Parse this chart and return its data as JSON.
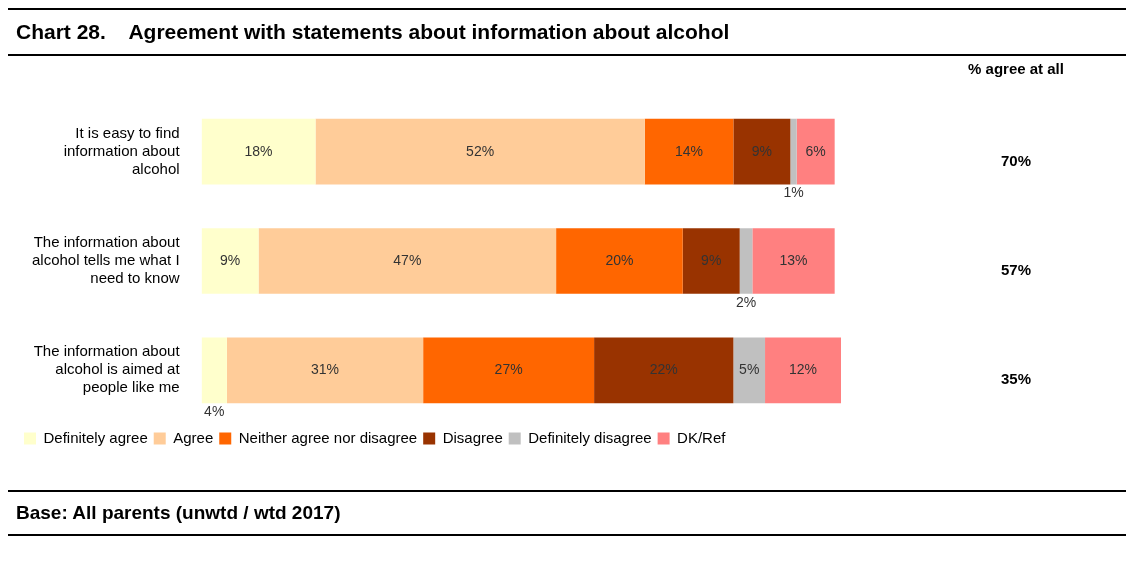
{
  "chart_data": {
    "type": "bar",
    "orientation": "horizontal",
    "stacked": true,
    "title": "Chart 28.    Agreement with statements about information about alcohol",
    "categories": [
      "It is easy to find information about alcohol",
      "The information about alcohol tells me what I need to know",
      "The information about alcohol is aimed at people like me"
    ],
    "series": [
      {
        "name": "Definitely agree",
        "color": "#ffffcc",
        "values": [
          18,
          9,
          4
        ],
        "value_labels": [
          "18%",
          "9%",
          "4%"
        ]
      },
      {
        "name": "Agree",
        "color": "#ffcc99",
        "values": [
          52,
          47,
          31
        ],
        "value_labels": [
          "52%",
          "47%",
          "31%"
        ]
      },
      {
        "name": "Neither agree nor disagree",
        "color": "#ff6600",
        "values": [
          14,
          20,
          27
        ],
        "value_labels": [
          "14%",
          "20%",
          "27%"
        ]
      },
      {
        "name": "Disagree",
        "color": "#993300",
        "values": [
          9,
          9,
          22
        ],
        "value_labels": [
          "9%",
          "9%",
          "22%"
        ]
      },
      {
        "name": "Definitely disagree",
        "color": "#c0c0c0",
        "values": [
          1,
          2,
          5
        ],
        "value_labels": [
          "1%",
          "2%",
          "5%"
        ]
      },
      {
        "name": "DK/Ref",
        "color": "#ff8080",
        "values": [
          6,
          13,
          12
        ],
        "value_labels": [
          "6%",
          "13%",
          "12%"
        ]
      }
    ],
    "legend": "bottom left",
    "annotations": [
      "% agree at all",
      "70%",
      "57%",
      "35%",
      "Base: All parents (unwtd / wtd 2017)"
    ]
  }
}
